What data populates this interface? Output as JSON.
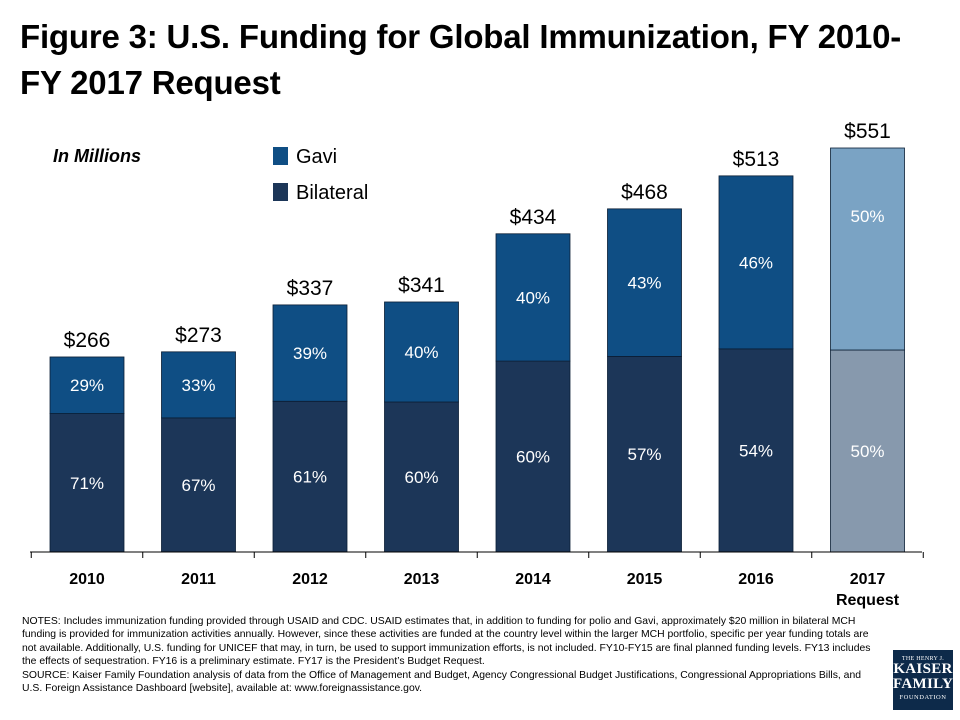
{
  "title_line1": "Figure 3: U.S. Funding for Global Immunization, FY 2010-",
  "title_line2": "FY 2017 Request",
  "chart_data": {
    "type": "bar",
    "stacked": true,
    "unit_note": "In Millions",
    "categories": [
      "2010",
      "2011",
      "2012",
      "2013",
      "2014",
      "2015",
      "2016",
      "2017"
    ],
    "category_sublabels": [
      "",
      "",
      "",
      "",
      "",
      "",
      "",
      "Request"
    ],
    "totals": [
      266,
      273,
      337,
      341,
      434,
      468,
      513,
      551
    ],
    "total_labels": [
      "$266",
      "$273",
      "$337",
      "$341",
      "$434",
      "$468",
      "$513",
      "$551"
    ],
    "series": [
      {
        "name": "Bilateral",
        "share_percent": [
          71,
          67,
          61,
          60,
          60,
          57,
          54,
          50
        ],
        "labels": [
          "71%",
          "67%",
          "61%",
          "60%",
          "60%",
          "57%",
          "54%",
          "50%"
        ],
        "color": "#1c3658",
        "request_color": "#8799ad"
      },
      {
        "name": "Gavi",
        "share_percent": [
          29,
          33,
          39,
          40,
          40,
          43,
          46,
          50
        ],
        "labels": [
          "29%",
          "33%",
          "39%",
          "40%",
          "40%",
          "43%",
          "46%",
          "50%"
        ],
        "color": "#0f4e84",
        "request_color": "#7aa3c4"
      }
    ],
    "legend": [
      "Gavi",
      "Bilateral"
    ],
    "legend_position": "top-left",
    "ylim": [
      0,
      551
    ],
    "grid": false
  },
  "notes_text": "NOTES: Includes immunization funding provided through USAID and CDC. USAID estimates that, in addition to funding for polio and Gavi, approximately $20 million in bilateral MCH funding is provided for immunization activities annually. However, since these activities are funded at the country level within the larger MCH portfolio, specific per year funding totals are not available. Additionally, U.S. funding for UNICEF that may, in turn, be used to support immunization efforts, is not included. FY10-FY15 are final planned funding levels. FY13 includes the effects of sequestration. FY16 is a preliminary estimate. FY17 is the President’s Budget Request.",
  "source_text": "SOURCE: Kaiser Family Foundation analysis of data from the Office of Management and Budget, Agency Congressional Budget Justifications, Congressional Appropriations Bills, and U.S. Foreign Assistance Dashboard [website], available at: www.foreignassistance.gov.",
  "logo": {
    "line1": "THE HENRY J.",
    "line2": "KAISER",
    "line3": "FAMILY",
    "line4": "FOUNDATION"
  }
}
